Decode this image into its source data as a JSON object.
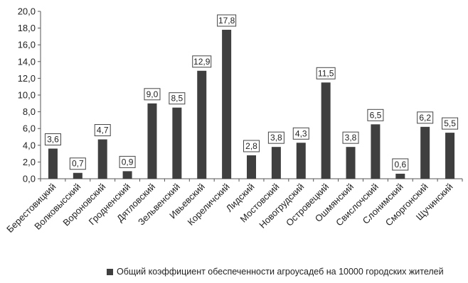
{
  "chart_data": {
    "type": "bar",
    "categories": [
      "Берестовицкий",
      "Волковысский",
      "Вороновский",
      "Гродненский",
      "Дятловский",
      "Зельвенский",
      "Ивьевский",
      "Кореличский",
      "Лидский",
      "Мостовский",
      "Новогрудский",
      "Островецкий",
      "Ошмянский",
      "Свислочский",
      "Слонимский",
      "Сморгонский",
      "Щучинский"
    ],
    "series": [
      {
        "name": "Общий коэффициент обеспеченности агроусадеб на 10000 городских жителей",
        "values": [
          3.6,
          0.7,
          4.7,
          0.9,
          9.0,
          8.5,
          12.9,
          17.8,
          2.8,
          3.8,
          4.3,
          11.5,
          3.8,
          6.5,
          0.6,
          6.2,
          5.5
        ],
        "labels": [
          "3,6",
          "0,7",
          "4,7",
          "0,9",
          "9,0",
          "8,5",
          "12,9",
          "17,8",
          "2,8",
          "3,8",
          "4,3",
          "11,5",
          "3,8",
          "6,5",
          "0,6",
          "6,2",
          "5,5"
        ]
      }
    ],
    "yticks": [
      "0,0",
      "2,0",
      "4,0",
      "6,0",
      "8,0",
      "10,0",
      "12,0",
      "14,0",
      "16,0",
      "18,0",
      "20,0"
    ],
    "ylim": [
      0,
      20
    ],
    "grid": false,
    "legend_position": "bottom",
    "bar_color": "#3f3f3f"
  }
}
